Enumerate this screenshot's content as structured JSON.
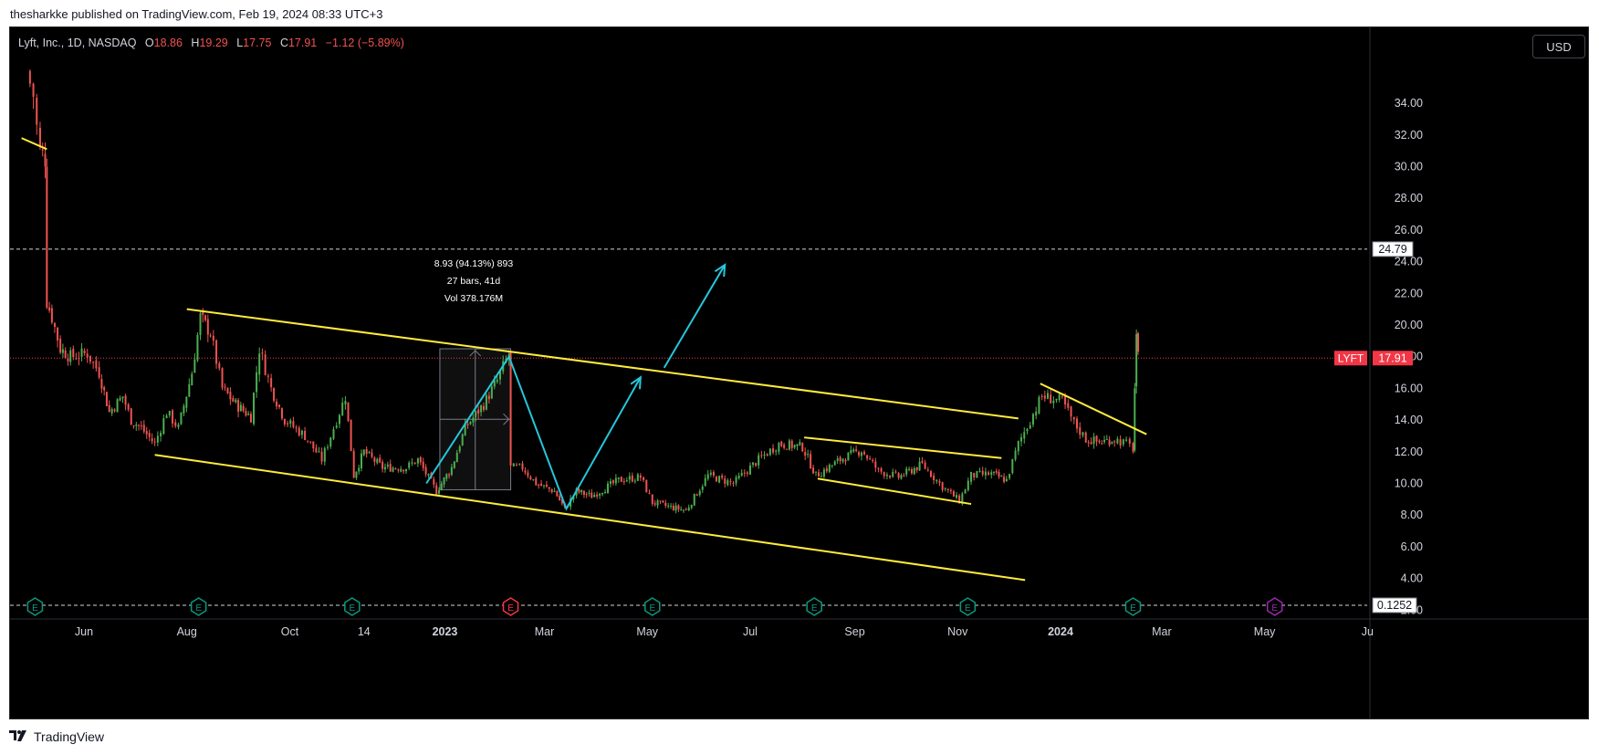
{
  "publisher_line": "thesharkke published on TradingView.com, Feb 19, 2024 08:33 UTC+3",
  "legend": {
    "title": "Lyft, Inc., 1D, NASDAQ",
    "o_label": "O",
    "o": "18.86",
    "h_label": "H",
    "h": "19.29",
    "l_label": "L",
    "l": "17.75",
    "c_label": "C",
    "c": "17.91",
    "change": "−1.12 (−5.89%)"
  },
  "currency": "USD",
  "footer_brand": "TradingView",
  "measure": {
    "line1": "8.93 (94.13%) 893",
    "line2": "27 bars, 41d",
    "line3": "Vol 378.176M"
  },
  "colors": {
    "background": "#000000",
    "up": "#4caf50",
    "down": "#ef5350",
    "trendline": "#ffeb3b",
    "arrow": "#26c6da",
    "price_label_bg": "#f23645",
    "earnings_green": "#089981",
    "earnings_red": "#f23645",
    "earnings_purple": "#9c27b0"
  },
  "chart_data": {
    "type": "candlestick",
    "symbol": "LYFT",
    "y_ticks": [
      2,
      4,
      6,
      8,
      10,
      12,
      14,
      16,
      18,
      20,
      22,
      24,
      26,
      28,
      30,
      32,
      34
    ],
    "y_tick_labels": [
      "2.00",
      "4.00",
      "6.00",
      "8.00",
      "10.00",
      "12.00",
      "14.00",
      "16.00",
      "18.00",
      "20.00",
      "22.00",
      "24.00",
      "26.00",
      "28.00",
      "30.00",
      "32.00",
      "34.00"
    ],
    "ylim": [
      0,
      36
    ],
    "x_labels": [
      "Jun",
      "Aug",
      "Oct",
      "14",
      "2023",
      "Mar",
      "May",
      "Jul",
      "Sep",
      "Nov",
      "2024",
      "Mar",
      "May",
      "Ju"
    ],
    "x_label_bold": [
      false,
      false,
      false,
      false,
      true,
      false,
      false,
      false,
      false,
      false,
      true,
      false,
      false,
      false
    ],
    "x_label_dates": [
      "2022-06-01",
      "2022-08-01",
      "2022-10-01",
      "2022-11-14",
      "2023-01-01",
      "2023-03-01",
      "2023-05-01",
      "2023-07-01",
      "2023-09-01",
      "2023-11-01",
      "2024-01-01",
      "2024-03-01",
      "2024-05-01",
      "2024-07-01"
    ],
    "last_price": 17.91,
    "last_price_label": "17.91",
    "last_price_tag": "LYFT",
    "horizontal_line_value": 24.79,
    "horizontal_line_label": "24.79",
    "bottom_line_value": 0.1252,
    "bottom_line_label": "0.1252",
    "price_path": [
      [
        "2022-04-28",
        36.0
      ],
      [
        "2022-05-02",
        34.5
      ],
      [
        "2022-05-04",
        32.5
      ],
      [
        "2022-05-06",
        31.0
      ],
      [
        "2022-05-09",
        30.5
      ],
      [
        "2022-05-10",
        21.5
      ],
      [
        "2022-05-13",
        20.5
      ],
      [
        "2022-05-18",
        18.5
      ],
      [
        "2022-05-24",
        18.0
      ],
      [
        "2022-06-03",
        18.2
      ],
      [
        "2022-06-10",
        17.0
      ],
      [
        "2022-06-16",
        14.5
      ],
      [
        "2022-06-24",
        15.5
      ],
      [
        "2022-06-29",
        14.0
      ],
      [
        "2022-07-05",
        13.5
      ],
      [
        "2022-07-13",
        12.5
      ],
      [
        "2022-07-20",
        14.5
      ],
      [
        "2022-07-27",
        13.5
      ],
      [
        "2022-08-04",
        17.0
      ],
      [
        "2022-08-09",
        20.5
      ],
      [
        "2022-08-15",
        19.5
      ],
      [
        "2022-08-22",
        16.0
      ],
      [
        "2022-08-30",
        15.0
      ],
      [
        "2022-09-08",
        14.2
      ],
      [
        "2022-09-13",
        18.5
      ],
      [
        "2022-09-20",
        16.0
      ],
      [
        "2022-09-28",
        14.0
      ],
      [
        "2022-10-10",
        13.0
      ],
      [
        "2022-10-20",
        11.5
      ],
      [
        "2022-10-27",
        13.5
      ],
      [
        "2022-11-03",
        15.5
      ],
      [
        "2022-11-08",
        10.5
      ],
      [
        "2022-11-14",
        12.0
      ],
      [
        "2022-11-25",
        11.0
      ],
      [
        "2022-12-09",
        11.0
      ],
      [
        "2022-12-16",
        11.5
      ],
      [
        "2022-12-27",
        9.5
      ],
      [
        "2023-01-05",
        11.0
      ],
      [
        "2023-01-13",
        13.5
      ],
      [
        "2023-01-24",
        15.0
      ],
      [
        "2023-02-01",
        16.5
      ],
      [
        "2023-02-08",
        18.2
      ],
      [
        "2023-02-09",
        11.0
      ],
      [
        "2023-02-16",
        11.0
      ],
      [
        "2023-02-24",
        10.0
      ],
      [
        "2023-03-07",
        9.5
      ],
      [
        "2023-03-13",
        8.4
      ],
      [
        "2023-03-20",
        9.5
      ],
      [
        "2023-03-29",
        9.2
      ],
      [
        "2023-04-14",
        10.2
      ],
      [
        "2023-04-27",
        10.4
      ],
      [
        "2023-05-04",
        8.8
      ],
      [
        "2023-05-15",
        8.5
      ],
      [
        "2023-05-24",
        8.3
      ],
      [
        "2023-06-06",
        10.5
      ],
      [
        "2023-06-21",
        10.0
      ],
      [
        "2023-07-06",
        11.5
      ],
      [
        "2023-07-18",
        12.5
      ],
      [
        "2023-08-01",
        12.3
      ],
      [
        "2023-08-09",
        10.5
      ],
      [
        "2023-08-25",
        11.6
      ],
      [
        "2023-09-05",
        12.1
      ],
      [
        "2023-09-15",
        10.8
      ],
      [
        "2023-09-27",
        10.4
      ],
      [
        "2023-10-11",
        11.2
      ],
      [
        "2023-10-23",
        9.8
      ],
      [
        "2023-11-02",
        8.9
      ],
      [
        "2023-11-09",
        10.5
      ],
      [
        "2023-11-21",
        10.6
      ],
      [
        "2023-11-30",
        10.2
      ],
      [
        "2023-12-07",
        12.5
      ],
      [
        "2023-12-14",
        14.0
      ],
      [
        "2023-12-21",
        15.5
      ],
      [
        "2024-01-02",
        15.2
      ],
      [
        "2024-01-09",
        13.8
      ],
      [
        "2024-01-16",
        12.8
      ],
      [
        "2024-01-24",
        12.6
      ],
      [
        "2024-02-02",
        12.8
      ],
      [
        "2024-02-09",
        12.5
      ],
      [
        "2024-02-13",
        12.2
      ],
      [
        "2024-02-14",
        16.0
      ],
      [
        "2024-02-15",
        19.0
      ],
      [
        "2024-02-16",
        17.91
      ]
    ],
    "trendlines": [
      {
        "from": [
          "2022-04-25",
          31.8
        ],
        "to": [
          "2022-05-10",
          31.1
        ]
      },
      {
        "from": [
          "2022-08-01",
          21.0
        ],
        "to": [
          "2023-12-07",
          14.1
        ]
      },
      {
        "from": [
          "2022-07-13",
          11.8
        ],
        "to": [
          "2023-12-11",
          3.9
        ]
      },
      {
        "from": [
          "2023-08-02",
          12.9
        ],
        "to": [
          "2023-11-27",
          11.6
        ]
      },
      {
        "from": [
          "2023-08-10",
          10.3
        ],
        "to": [
          "2023-11-09",
          8.7
        ]
      },
      {
        "from": [
          "2023-12-20",
          16.3
        ],
        "to": [
          "2024-02-21",
          13.1
        ]
      }
    ],
    "arrows": [
      {
        "points": [
          [
            "2022-12-21",
            10.0
          ],
          [
            "2023-02-08",
            18.0
          ],
          [
            "2023-03-14",
            8.4
          ],
          [
            "2023-04-27",
            16.7
          ]
        ]
      },
      {
        "points": [
          [
            "2023-05-11",
            17.3
          ],
          [
            "2023-06-16",
            23.8
          ]
        ]
      }
    ],
    "measure_box": {
      "from": [
        "2022-12-29",
        9.6
      ],
      "to": [
        "2023-02-09",
        18.5
      ]
    },
    "earnings": [
      {
        "date": "2022-05-03",
        "color": "green"
      },
      {
        "date": "2022-08-08",
        "color": "green"
      },
      {
        "date": "2022-11-07",
        "color": "green"
      },
      {
        "date": "2023-02-09",
        "color": "red"
      },
      {
        "date": "2023-05-04",
        "color": "green"
      },
      {
        "date": "2023-08-08",
        "color": "green"
      },
      {
        "date": "2023-11-07",
        "color": "green"
      },
      {
        "date": "2024-02-13",
        "color": "green"
      },
      {
        "date": "2024-05-07",
        "color": "purple"
      }
    ]
  }
}
